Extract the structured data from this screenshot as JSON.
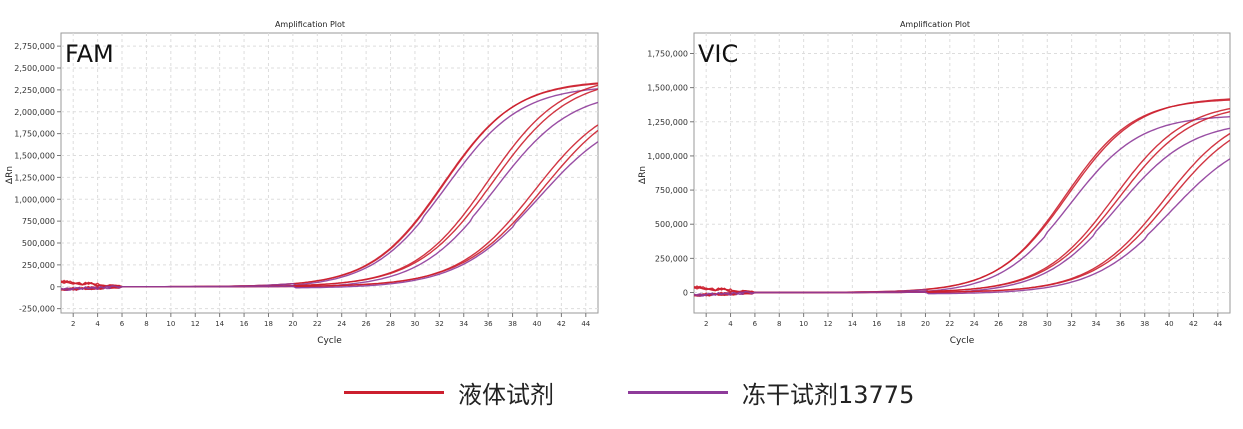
{
  "chart_data": [
    {
      "type": "line",
      "title": "Amplification Plot",
      "corner_label": "FAM",
      "xlabel": "Cycle",
      "ylabel": "ΔRn",
      "xlim": [
        1,
        45
      ],
      "ylim": [
        -300000,
        2900000
      ],
      "x_ticks": [
        2,
        4,
        6,
        8,
        10,
        12,
        14,
        16,
        18,
        20,
        22,
        24,
        26,
        28,
        30,
        32,
        34,
        36,
        38,
        40,
        42,
        44
      ],
      "y_ticks": [
        -250000,
        0,
        250000,
        500000,
        750000,
        1000000,
        1250000,
        1500000,
        1750000,
        2000000,
        2250000,
        2500000,
        2750000
      ],
      "y_tick_labels": [
        "-250,000",
        "0",
        "250,000",
        "500,000",
        "750,000",
        "1,000,000",
        "1,250,000",
        "1,500,000",
        "1,750,000",
        "2,000,000",
        "2,250,000",
        "2,500,000",
        "2,750,000"
      ],
      "grid": true,
      "series": [
        {
          "group": "liquid",
          "plateau": 2350000,
          "mid": 32.3,
          "k": 0.34
        },
        {
          "group": "liquid",
          "plateau": 2360000,
          "mid": 32.4,
          "k": 0.34
        },
        {
          "group": "lyo",
          "plateau": 2300000,
          "mid": 32.6,
          "k": 0.33
        },
        {
          "group": "liquid",
          "plateau": 2420000,
          "mid": 36.0,
          "k": 0.33
        },
        {
          "group": "liquid",
          "plateau": 2400000,
          "mid": 36.4,
          "k": 0.32
        },
        {
          "group": "lyo",
          "plateau": 2250000,
          "mid": 36.6,
          "k": 0.32
        },
        {
          "group": "liquid",
          "plateau": 2200000,
          "mid": 39.8,
          "k": 0.32
        },
        {
          "group": "liquid",
          "plateau": 2250000,
          "mid": 40.5,
          "k": 0.3
        },
        {
          "group": "lyo",
          "plateau": 2050000,
          "mid": 40.2,
          "k": 0.3
        }
      ]
    },
    {
      "type": "line",
      "title": "Amplification Plot",
      "corner_label": "VIC",
      "xlabel": "Cycle",
      "ylabel": "ΔRn",
      "xlim": [
        1,
        45
      ],
      "ylim": [
        -150000,
        1900000
      ],
      "x_ticks": [
        2,
        4,
        6,
        8,
        10,
        12,
        14,
        16,
        18,
        20,
        22,
        24,
        26,
        28,
        30,
        32,
        34,
        36,
        38,
        40,
        42,
        44
      ],
      "y_ticks": [
        0,
        250000,
        500000,
        750000,
        1000000,
        1250000,
        1500000,
        1750000
      ],
      "y_tick_labels": [
        "0",
        "250,000",
        "500,000",
        "750,000",
        "1,000,000",
        "1,250,000",
        "1,500,000",
        "1,750,000"
      ],
      "grid": true,
      "series": [
        {
          "group": "liquid",
          "plateau": 1420000,
          "mid": 31.5,
          "k": 0.36
        },
        {
          "group": "liquid",
          "plateau": 1430000,
          "mid": 31.7,
          "k": 0.35
        },
        {
          "group": "lyo",
          "plateau": 1300000,
          "mid": 31.9,
          "k": 0.35
        },
        {
          "group": "liquid",
          "plateau": 1400000,
          "mid": 35.5,
          "k": 0.34
        },
        {
          "group": "liquid",
          "plateau": 1390000,
          "mid": 35.9,
          "k": 0.33
        },
        {
          "group": "lyo",
          "plateau": 1260000,
          "mid": 35.8,
          "k": 0.33
        },
        {
          "group": "liquid",
          "plateau": 1360000,
          "mid": 39.6,
          "k": 0.33
        },
        {
          "group": "liquid",
          "plateau": 1340000,
          "mid": 40.0,
          "k": 0.32
        },
        {
          "group": "lyo",
          "plateau": 1200000,
          "mid": 40.2,
          "k": 0.31
        }
      ]
    }
  ],
  "legend": {
    "items": [
      {
        "label": "液体试剂",
        "color": "#cc1f2e",
        "group": "liquid"
      },
      {
        "label": "冻干试剂13775",
        "color": "#8e3b9a",
        "group": "lyo"
      }
    ]
  }
}
